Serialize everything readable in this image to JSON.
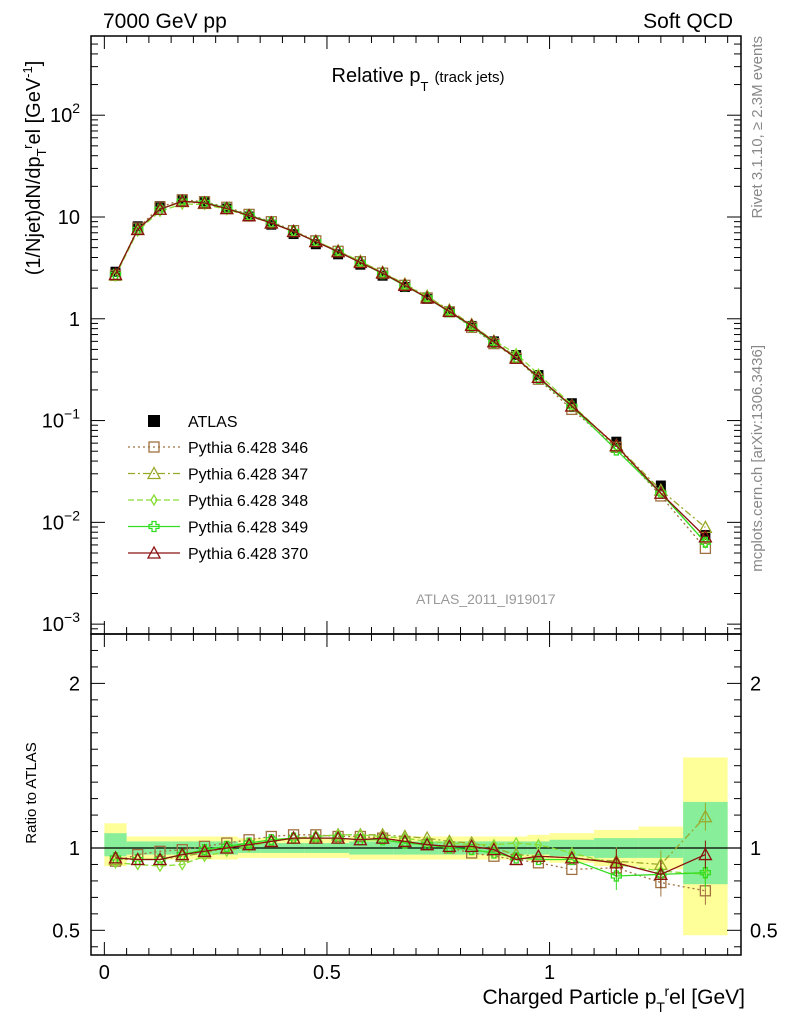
{
  "header": {
    "left": "7000 GeV pp",
    "right": "Soft QCD"
  },
  "side_text": {
    "rivet": "Rivet 3.1.10, ≥ 2.3M events",
    "mcplots": "mcplots.cern.ch [arXiv:1306.3436]"
  },
  "chart_data": {
    "type": "line",
    "title": "Relative p_T (track jets)",
    "title_main": "Relative p",
    "title_sub": "T",
    "title_small": "(track jets)",
    "analysis_id": "ATLAS_2011_I919017",
    "xlabel": "Charged Particle p_T^rel [GeV]",
    "ylabel_top": "(1/Njet)dN/dp_T^rel [GeV^-1]",
    "ylabel_bottom": "Ratio to ATLAS",
    "x_scale": "linear",
    "xlim": [
      -0.03,
      1.43
    ],
    "y_scale_top": "log",
    "ylim_top": [
      0.0008,
      600
    ],
    "ylim_bottom": [
      0.35,
      2.3
    ],
    "x_ticks": [
      {
        "v": 0,
        "label": "0"
      },
      {
        "v": 0.5,
        "label": "0.5"
      },
      {
        "v": 1,
        "label": "1"
      }
    ],
    "y_ticks_top": [
      {
        "v": 0.001,
        "base": "10",
        "exp": "−3"
      },
      {
        "v": 0.01,
        "base": "10",
        "exp": "−2"
      },
      {
        "v": 0.1,
        "base": "10",
        "exp": "−1"
      },
      {
        "v": 1,
        "base": "1",
        "exp": ""
      },
      {
        "v": 10,
        "base": "10",
        "exp": ""
      },
      {
        "v": 100,
        "base": "10",
        "exp": "2"
      }
    ],
    "y_ticks_bottom": [
      {
        "v": 0.5,
        "label": "0.5"
      },
      {
        "v": 1,
        "label": "1"
      },
      {
        "v": 2,
        "label": "2"
      }
    ],
    "x": [
      0.025,
      0.075,
      0.125,
      0.175,
      0.225,
      0.275,
      0.325,
      0.375,
      0.425,
      0.475,
      0.525,
      0.575,
      0.625,
      0.675,
      0.725,
      0.775,
      0.825,
      0.875,
      0.925,
      0.975,
      1.05,
      1.15,
      1.25,
      1.35
    ],
    "legend_position": "lower-left",
    "reference": {
      "name": "ATLAS",
      "color": "#000000",
      "values": [
        2.9,
        8.1,
        12.8,
        14.9,
        14.0,
        12.1,
        10.1,
        8.4,
        6.8,
        5.4,
        4.3,
        3.4,
        2.65,
        2.05,
        1.57,
        1.17,
        0.85,
        0.6,
        0.44,
        0.28,
        0.148,
        0.062,
        0.023,
        0.0075
      ]
    },
    "band_outer": [
      [
        0.89,
        1.15
      ],
      [
        0.93,
        1.07
      ],
      [
        0.93,
        1.07
      ],
      [
        0.93,
        1.07
      ],
      [
        0.93,
        1.07
      ],
      [
        0.93,
        1.07
      ],
      [
        0.94,
        1.06
      ],
      [
        0.94,
        1.06
      ],
      [
        0.94,
        1.06
      ],
      [
        0.94,
        1.06
      ],
      [
        0.94,
        1.06
      ],
      [
        0.93,
        1.07
      ],
      [
        0.93,
        1.07
      ],
      [
        0.93,
        1.07
      ],
      [
        0.93,
        1.07
      ],
      [
        0.93,
        1.07
      ],
      [
        0.93,
        1.07
      ],
      [
        0.93,
        1.07
      ],
      [
        0.93,
        1.07
      ],
      [
        0.92,
        1.08
      ],
      [
        0.91,
        1.09
      ],
      [
        0.89,
        1.11
      ],
      [
        0.87,
        1.13
      ],
      [
        0.47,
        1.55
      ]
    ],
    "band_inner": [
      [
        0.95,
        1.09
      ],
      [
        0.96,
        1.04
      ],
      [
        0.96,
        1.04
      ],
      [
        0.96,
        1.04
      ],
      [
        0.96,
        1.04
      ],
      [
        0.96,
        1.04
      ],
      [
        0.97,
        1.03
      ],
      [
        0.97,
        1.03
      ],
      [
        0.97,
        1.03
      ],
      [
        0.97,
        1.03
      ],
      [
        0.97,
        1.03
      ],
      [
        0.96,
        1.04
      ],
      [
        0.96,
        1.04
      ],
      [
        0.96,
        1.04
      ],
      [
        0.96,
        1.04
      ],
      [
        0.96,
        1.04
      ],
      [
        0.96,
        1.04
      ],
      [
        0.96,
        1.04
      ],
      [
        0.96,
        1.04
      ],
      [
        0.96,
        1.04
      ],
      [
        0.95,
        1.05
      ],
      [
        0.94,
        1.06
      ],
      [
        0.94,
        1.06
      ],
      [
        0.78,
        1.28
      ]
    ],
    "series": [
      {
        "name": "Pythia 6.428 346",
        "color": "#a07040",
        "marker": "square",
        "dash": "2,3",
        "ratio": [
          0.92,
          0.96,
          0.98,
          0.99,
          1.01,
          1.03,
          1.05,
          1.07,
          1.08,
          1.08,
          1.07,
          1.07,
          1.06,
          1.04,
          1.02,
          1.0,
          0.97,
          0.95,
          0.93,
          0.91,
          0.87,
          0.88,
          0.79,
          0.74
        ]
      },
      {
        "name": "Pythia 6.428 347",
        "color": "#9aa82a",
        "marker": "triangle",
        "dash": "7,3,2,3",
        "ratio": [
          0.93,
          0.93,
          0.93,
          0.95,
          0.97,
          1.0,
          1.02,
          1.04,
          1.06,
          1.07,
          1.08,
          1.08,
          1.08,
          1.07,
          1.06,
          1.04,
          1.03,
          1.0,
          0.96,
          0.95,
          0.94,
          0.92,
          0.9,
          1.19
        ]
      },
      {
        "name": "Pythia 6.428 348",
        "color": "#88dd33",
        "marker": "diamond",
        "dash": "6,3",
        "ratio": [
          0.91,
          0.9,
          0.89,
          0.9,
          0.95,
          0.98,
          1.01,
          1.04,
          1.06,
          1.07,
          1.08,
          1.08,
          1.07,
          1.06,
          1.04,
          1.03,
          1.02,
          1.02,
          1.03,
          1.02,
          0.97,
          0.9,
          0.86,
          0.84
        ]
      },
      {
        "name": "Pythia 6.428 349",
        "color": "#33dd22",
        "marker": "cross",
        "dash": "",
        "ratio": [
          0.94,
          0.93,
          0.93,
          0.96,
          0.99,
          1.01,
          1.03,
          1.05,
          1.06,
          1.06,
          1.06,
          1.05,
          1.05,
          1.03,
          1.02,
          1.0,
          0.99,
          0.97,
          0.94,
          0.93,
          0.93,
          0.83,
          0.84,
          0.85
        ]
      },
      {
        "name": "Pythia 6.428 370",
        "color": "#8b1010",
        "marker": "triangle",
        "dash": "",
        "ratio": [
          0.94,
          0.93,
          0.93,
          0.96,
          0.98,
          1.0,
          1.02,
          1.04,
          1.06,
          1.06,
          1.06,
          1.05,
          1.06,
          1.04,
          1.02,
          1.01,
          1.01,
          0.99,
          0.93,
          0.95,
          0.94,
          0.91,
          0.84,
          0.96
        ]
      }
    ]
  }
}
